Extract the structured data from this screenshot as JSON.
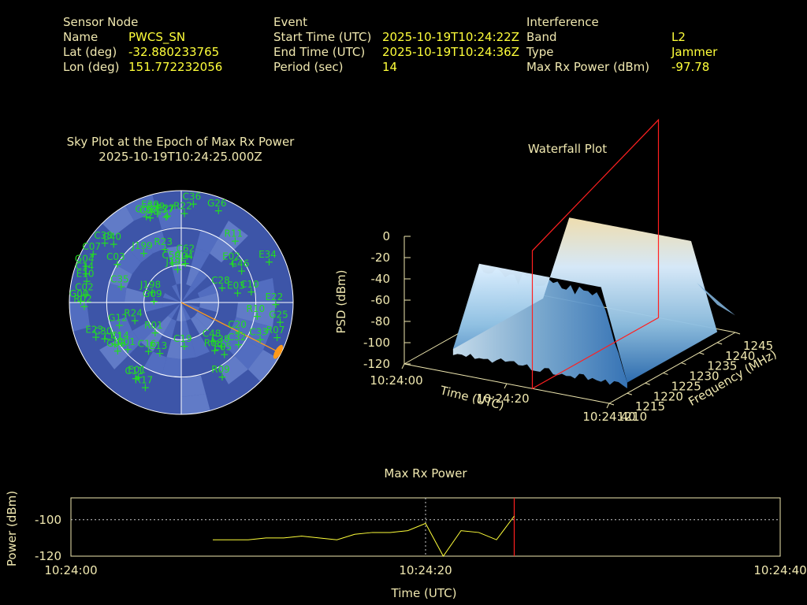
{
  "header": {
    "sensor": {
      "section_label": "Sensor Node",
      "rows": [
        {
          "label": "Name",
          "value": "PWCS_SN"
        },
        {
          "label": "Lat (deg)",
          "value": "-32.880233765"
        },
        {
          "label": "Lon (deg)",
          "value": "151.772232056"
        }
      ]
    },
    "event": {
      "section_label": "Event",
      "rows": [
        {
          "label": "Start Time (UTC)",
          "value": "2025-10-19T10:24:22Z"
        },
        {
          "label": "End Time (UTC)",
          "value": "2025-10-19T10:24:36Z"
        },
        {
          "label": "Period (sec)",
          "value": "14"
        }
      ]
    },
    "interference": {
      "section_label": "Interference",
      "rows": [
        {
          "label": "Band",
          "value": "L2"
        },
        {
          "label": "Type",
          "value": "Jammer"
        },
        {
          "label": "Max Rx Power (dBm)",
          "value": "-97.78"
        }
      ]
    }
  },
  "chart_data": [
    {
      "type": "scatter",
      "kind": "polar-skyplot",
      "title": "Sky Plot at the Epoch of Max Rx Power",
      "subtitle": "2025-10-19T10:24:25.000Z",
      "colors": {
        "background": "#3d55a8",
        "marker": "#22dd22",
        "jammer": "#ff9a1a"
      },
      "jammer": {
        "azimuth_deg": 117,
        "elevation_deg": 0
      },
      "satellites": [
        {
          "id": "G08",
          "az": 338,
          "el": 15
        },
        {
          "id": "C07",
          "az": 340,
          "el": 17
        },
        {
          "id": "E30",
          "az": 342,
          "el": 13
        },
        {
          "id": "R22",
          "az": 2,
          "el": 18
        },
        {
          "id": "C36",
          "az": 7,
          "el": 10
        },
        {
          "id": "G26",
          "az": 22,
          "el": 10
        },
        {
          "id": "E39",
          "az": 345,
          "el": 16
        },
        {
          "id": "E27",
          "az": 351,
          "el": 19
        },
        {
          "id": "E37",
          "az": 350,
          "el": 20
        },
        {
          "id": "C38",
          "az": 308,
          "el": 12
        },
        {
          "id": "C40",
          "az": 311,
          "el": 18
        },
        {
          "id": "C07",
          "az": 299,
          "el": 9
        },
        {
          "id": "C03",
          "az": 301,
          "el": 30
        },
        {
          "id": "J199",
          "az": 323,
          "el": 40
        },
        {
          "id": "R23",
          "az": 343,
          "el": 45
        },
        {
          "id": "C59",
          "az": 348,
          "el": 57
        },
        {
          "id": "C62",
          "az": 7,
          "el": 52
        },
        {
          "id": "C04",
          "az": 6,
          "el": 58
        },
        {
          "id": "J195",
          "az": 354,
          "el": 63
        },
        {
          "id": "R11",
          "az": 41,
          "el": 24
        },
        {
          "id": "E02",
          "az": 53,
          "el": 38
        },
        {
          "id": "C46",
          "az": 62,
          "el": 35
        },
        {
          "id": "E34",
          "az": 65,
          "el": 12
        },
        {
          "id": "G04",
          "az": 291,
          "el": 8
        },
        {
          "id": "C14",
          "az": 287,
          "el": 10
        },
        {
          "id": "E10",
          "az": 283,
          "el": 12
        },
        {
          "id": "C02",
          "az": 275,
          "el": 13
        },
        {
          "id": "C35",
          "az": 285,
          "el": 40
        },
        {
          "id": "G00",
          "az": 271,
          "el": 9
        },
        {
          "id": "R02",
          "az": 268,
          "el": 12
        },
        {
          "id": "C28",
          "az": 70,
          "el": 55
        },
        {
          "id": "E03",
          "az": 80,
          "el": 44
        },
        {
          "id": "C10",
          "az": 81,
          "el": 33
        },
        {
          "id": "R10",
          "az": 100,
          "el": 28
        },
        {
          "id": "E22",
          "az": 91,
          "el": 14
        },
        {
          "id": "J198",
          "az": 290,
          "el": 65
        },
        {
          "id": "G09",
          "az": 273,
          "el": 68
        },
        {
          "id": "R24",
          "az": 249,
          "el": 50
        },
        {
          "id": "G12",
          "az": 250,
          "el": 37
        },
        {
          "id": "E23",
          "az": 248,
          "el": 16
        },
        {
          "id": "C30",
          "az": 245,
          "el": 22
        },
        {
          "id": "R01",
          "az": 221,
          "el": 58
        },
        {
          "id": "C19",
          "az": 176,
          "el": 55
        },
        {
          "id": "C48",
          "az": 140,
          "el": 50
        },
        {
          "id": "C20",
          "az": 117,
          "el": 38
        },
        {
          "id": "G25",
          "az": 101,
          "el": 9
        },
        {
          "id": "R07",
          "az": 110,
          "el": 8
        },
        {
          "id": "C32",
          "az": 126,
          "el": 33
        },
        {
          "id": "R08",
          "az": 145,
          "el": 43
        },
        {
          "id": "C38",
          "az": 137,
          "el": 42
        },
        {
          "id": "C33",
          "az": 115,
          "el": 20
        },
        {
          "id": "E05",
          "az": 140,
          "el": 36
        },
        {
          "id": "C01",
          "az": 229,
          "el": 33
        },
        {
          "id": "C41",
          "az": 238,
          "el": 27
        },
        {
          "id": "G03",
          "az": 233,
          "el": 26
        },
        {
          "id": "C14",
          "az": 236,
          "el": 32
        },
        {
          "id": "C16",
          "az": 214,
          "el": 43
        },
        {
          "id": "E13",
          "az": 203,
          "el": 46
        },
        {
          "id": "E01",
          "az": 210,
          "el": 21
        },
        {
          "id": "C11",
          "az": 211,
          "el": 19
        },
        {
          "id": "R17",
          "az": 203,
          "el": 16
        },
        {
          "id": "R09",
          "az": 151,
          "el": 22
        }
      ]
    },
    {
      "type": "area",
      "kind": "3d-waterfall",
      "title": "Waterfall Plot",
      "xlabel": "Time (UTC)",
      "ylabel": "Frequency (MHz)",
      "zlabel": "PSD (dBm)",
      "x_ticks": [
        "10:24:00",
        "10:24:20",
        "10:24:40"
      ],
      "y_ticks": [
        "1210",
        "1215",
        "1220",
        "1225",
        "1230",
        "1235",
        "1240",
        "1245"
      ],
      "z_ticks": [
        "0",
        "-20",
        "-40",
        "-60",
        "-80",
        "-100",
        "-120"
      ],
      "xlim": [
        "10:24:00",
        "10:24:40"
      ],
      "ylim": [
        1210,
        1245
      ],
      "zlim": [
        -120,
        0
      ],
      "marker_time": "10:24:25",
      "colors": {
        "low": "#3f7fc0",
        "mid": "#d8eef8",
        "high": "#f5e2b0",
        "marker": "#ff2020"
      },
      "surface": {
        "time_start": "10:24:06",
        "time_end": "10:24:40",
        "band_mhz": [
          1215,
          1240
        ],
        "peak_dbm": -25,
        "floor_dbm": -110
      }
    },
    {
      "type": "line",
      "title": "Max Rx Power",
      "xlabel": "Time (UTC)",
      "ylabel": "Power (dBm)",
      "x_ticks": [
        "10:24:00",
        "10:24:20",
        "10:24:40"
      ],
      "y_ticks": [
        "-100",
        "-120"
      ],
      "xlim": [
        "10:24:00",
        "10:24:40"
      ],
      "ylim": [
        -120,
        -88
      ],
      "grid": true,
      "marker_time": "10:24:25",
      "colors": {
        "line": "#ffff3a",
        "marker": "#ff2020"
      },
      "series": [
        {
          "x": [
            "10:24:08",
            "10:24:10",
            "10:24:11",
            "10:24:12",
            "10:24:13",
            "10:24:14",
            "10:24:15",
            "10:24:16",
            "10:24:17",
            "10:24:18",
            "10:24:19",
            "10:24:20",
            "10:24:21",
            "10:24:22",
            "10:24:23",
            "10:24:24",
            "10:24:25"
          ],
          "values": [
            -111,
            -111,
            -110,
            -110,
            -109,
            -110,
            -111,
            -108,
            -107,
            -107,
            -106,
            -102,
            -121,
            -106,
            -107,
            -111,
            -98
          ]
        }
      ]
    }
  ]
}
